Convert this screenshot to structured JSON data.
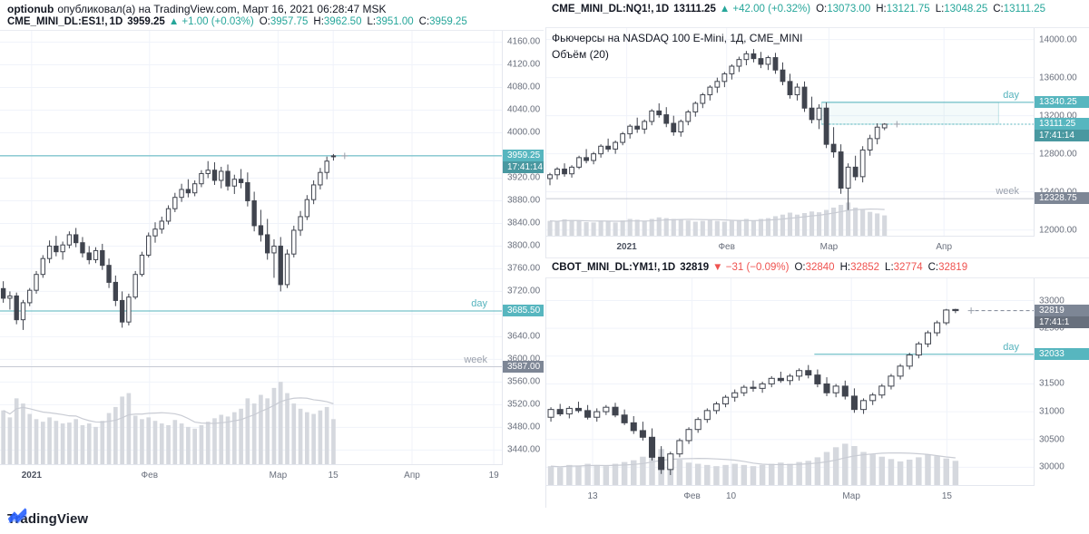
{
  "page": {
    "publisher": "optionub",
    "publish_text": "опубликовал(а) на TradingView.com, Март 16, 2021 06:28:47 MSK",
    "brand": "TradingView"
  },
  "colors": {
    "up": "#26a69a",
    "down": "#ef5350",
    "teal": "#57b6bf",
    "teal_line": "#55b3bd",
    "gray_badge": "#7d8695",
    "gray_line": "#c6cad3",
    "gray_dash": "#7b8392",
    "candle": "#40444e",
    "volume": "#d5d8de",
    "volume_ma": "#c9ccd4",
    "grid": "#f0f3fa",
    "text": "#131722",
    "axis_text": "#696f7c",
    "brand_blue": "#2962ff"
  },
  "headers": {
    "es": {
      "symbol": "CME_MINI_DL:ES1!,",
      "interval": "1D",
      "last": "3959.25",
      "change": "▲ +1.00 (+0.03%)",
      "o_label": "O:",
      "o": "3957.75",
      "h_label": "H:",
      "h": "3962.50",
      "l_label": "L:",
      "l": "3951.00",
      "c_label": "C:",
      "c": "3959.25"
    },
    "nq": {
      "symbol": "CME_MINI_DL:NQ1!,",
      "interval": "1D",
      "last": "13111.25",
      "change": "▲ +42.00 (+0.32%)",
      "o_label": "O:",
      "o": "13073.00",
      "h_label": "H:",
      "h": "13121.75",
      "l_label": "L:",
      "l": "13048.25",
      "c_label": "C:",
      "c": "13111.25"
    },
    "ym": {
      "symbol": "CBOT_MINI_DL:YM1!,",
      "interval": "1D",
      "last": "32819",
      "change": "▼ −31 (−0.09%)",
      "o_label": "O:",
      "o": "32840",
      "h_label": "H:",
      "h": "32852",
      "l_label": "L:",
      "l": "32774",
      "c_label": "C:",
      "c": "32819"
    }
  },
  "legends": {
    "nq": {
      "title": "Фьючерсы на NASDAQ 100 E-Mini, 1Д, CME_MINI",
      "volume": "Объём (20)"
    }
  },
  "chart_data": [
    {
      "id": "es",
      "type": "candlestick",
      "y_min": 3415,
      "y_max": 4180,
      "decimals": 2,
      "slots": 76,
      "vol_frac": 0.19,
      "ticks": [
        4160,
        4120,
        4080,
        4040,
        4000,
        3960,
        3920,
        3880,
        3840,
        3800,
        3760,
        3720,
        3680,
        3640,
        3600,
        3560,
        3520,
        3480,
        3440
      ],
      "x_labels": [
        {
          "f": 0.063,
          "t": "2021",
          "b": true
        },
        {
          "f": 0.298,
          "t": "Фев"
        },
        {
          "f": 0.554,
          "t": "Мар"
        },
        {
          "f": 0.664,
          "t": "15"
        },
        {
          "f": 0.821,
          "t": "Апр"
        },
        {
          "f": 0.984,
          "t": "19"
        }
      ],
      "levels": [
        {
          "value": 3959.25,
          "color": "teal",
          "badge": "3959.25",
          "countdown": "17:41:14"
        },
        {
          "value": 3685.5,
          "color": "teal",
          "label": "day",
          "badge": "3685.50"
        },
        {
          "value": 3587,
          "color": "gray",
          "label": "week",
          "badge": "3587.00"
        }
      ],
      "candles": [
        [
          3725,
          3738,
          3700,
          3708
        ],
        [
          3708,
          3720,
          3688,
          3712
        ],
        [
          3712,
          3718,
          3662,
          3670
        ],
        [
          3670,
          3705,
          3652,
          3700
        ],
        [
          3700,
          3726,
          3694,
          3722
        ],
        [
          3722,
          3756,
          3716,
          3750
        ],
        [
          3750,
          3784,
          3744,
          3778
        ],
        [
          3778,
          3810,
          3770,
          3800
        ],
        [
          3800,
          3818,
          3782,
          3790
        ],
        [
          3790,
          3808,
          3776,
          3802
        ],
        [
          3802,
          3826,
          3796,
          3820
        ],
        [
          3820,
          3832,
          3798,
          3806
        ],
        [
          3806,
          3816,
          3780,
          3788
        ],
        [
          3788,
          3800,
          3768,
          3776
        ],
        [
          3776,
          3798,
          3770,
          3792
        ],
        [
          3792,
          3804,
          3758,
          3766
        ],
        [
          3766,
          3778,
          3726,
          3736
        ],
        [
          3736,
          3748,
          3694,
          3704
        ],
        [
          3704,
          3720,
          3656,
          3666
        ],
        [
          3666,
          3716,
          3660,
          3710
        ],
        [
          3710,
          3756,
          3706,
          3750
        ],
        [
          3750,
          3790,
          3746,
          3784
        ],
        [
          3784,
          3824,
          3780,
          3818
        ],
        [
          3818,
          3842,
          3806,
          3830
        ],
        [
          3830,
          3852,
          3822,
          3844
        ],
        [
          3844,
          3872,
          3838,
          3866
        ],
        [
          3866,
          3894,
          3860,
          3886
        ],
        [
          3886,
          3910,
          3878,
          3900
        ],
        [
          3900,
          3918,
          3886,
          3894
        ],
        [
          3894,
          3916,
          3888,
          3910
        ],
        [
          3910,
          3934,
          3904,
          3928
        ],
        [
          3928,
          3950,
          3920,
          3934
        ],
        [
          3934,
          3948,
          3908,
          3916
        ],
        [
          3916,
          3940,
          3902,
          3932
        ],
        [
          3932,
          3944,
          3898,
          3906
        ],
        [
          3906,
          3926,
          3892,
          3918
        ],
        [
          3918,
          3936,
          3902,
          3912
        ],
        [
          3912,
          3930,
          3870,
          3880
        ],
        [
          3880,
          3896,
          3826,
          3836
        ],
        [
          3836,
          3864,
          3808,
          3820
        ],
        [
          3820,
          3848,
          3776,
          3788
        ],
        [
          3788,
          3812,
          3744,
          3800
        ],
        [
          3800,
          3816,
          3720,
          3732
        ],
        [
          3732,
          3794,
          3726,
          3786
        ],
        [
          3786,
          3836,
          3780,
          3828
        ],
        [
          3828,
          3862,
          3818,
          3852
        ],
        [
          3852,
          3890,
          3846,
          3882
        ],
        [
          3882,
          3916,
          3874,
          3908
        ],
        [
          3908,
          3938,
          3900,
          3930
        ],
        [
          3930,
          3958,
          3918,
          3950
        ],
        [
          3957.75,
          3962.5,
          3951,
          3959.25
        ]
      ],
      "volumes": [
        620,
        540,
        760,
        700,
        580,
        520,
        490,
        540,
        500,
        470,
        480,
        520,
        450,
        470,
        430,
        500,
        590,
        660,
        780,
        820,
        560,
        520,
        540,
        500,
        470,
        450,
        510,
        470,
        430,
        410,
        450,
        490,
        530,
        570,
        550,
        600,
        640,
        760,
        700,
        800,
        760,
        880,
        950,
        820,
        700,
        640,
        600,
        580,
        620,
        660,
        520
      ]
    },
    {
      "id": "nq",
      "type": "candlestick",
      "y_min": 11940,
      "y_max": 14120,
      "decimals": 2,
      "slots": 67,
      "vol_frac": 0.16,
      "ticks": [
        14000,
        13600,
        13200,
        12800,
        12400,
        12000
      ],
      "x_labels": [
        {
          "f": 0.165,
          "t": "2021",
          "b": true
        },
        {
          "f": 0.37,
          "t": "Фев"
        },
        {
          "f": 0.58,
          "t": "Мар"
        },
        {
          "f": 0.816,
          "t": "Апр"
        }
      ],
      "box": {
        "f0": 0.565,
        "f1": 0.928,
        "v1": 13340.25,
        "v2": 13111.25
      },
      "levels": [
        {
          "value": 13340.25,
          "color": "teal",
          "label": "day",
          "badge": "13340.25",
          "f0": 0.565
        },
        {
          "value": 13111.25,
          "color": "teal",
          "badge": "13111.25",
          "countdown": "17:41:14",
          "f0": 0.565,
          "dash": "2,2"
        },
        {
          "value": 12328.75,
          "color": "gray",
          "label": "week",
          "badge": "12328.75"
        }
      ],
      "candles": [
        [
          12540,
          12600,
          12470,
          12580
        ],
        [
          12580,
          12660,
          12530,
          12640
        ],
        [
          12640,
          12700,
          12560,
          12590
        ],
        [
          12590,
          12680,
          12550,
          12660
        ],
        [
          12660,
          12780,
          12640,
          12760
        ],
        [
          12760,
          12850,
          12700,
          12730
        ],
        [
          12730,
          12820,
          12690,
          12800
        ],
        [
          12800,
          12900,
          12760,
          12880
        ],
        [
          12880,
          12960,
          12820,
          12850
        ],
        [
          12850,
          12940,
          12800,
          12920
        ],
        [
          12920,
          13030,
          12890,
          13010
        ],
        [
          13010,
          13110,
          12960,
          13090
        ],
        [
          13090,
          13180,
          13020,
          13060
        ],
        [
          13060,
          13160,
          13010,
          13140
        ],
        [
          13140,
          13270,
          13100,
          13250
        ],
        [
          13250,
          13330,
          13180,
          13210
        ],
        [
          13210,
          13290,
          13080,
          13120
        ],
        [
          13120,
          13200,
          12990,
          13030
        ],
        [
          13030,
          13160,
          12980,
          13140
        ],
        [
          13140,
          13260,
          13100,
          13240
        ],
        [
          13240,
          13350,
          13190,
          13330
        ],
        [
          13330,
          13440,
          13280,
          13420
        ],
        [
          13420,
          13520,
          13360,
          13500
        ],
        [
          13500,
          13600,
          13440,
          13560
        ],
        [
          13560,
          13660,
          13500,
          13640
        ],
        [
          13640,
          13740,
          13580,
          13720
        ],
        [
          13720,
          13820,
          13660,
          13790
        ],
        [
          13790,
          13880,
          13730,
          13850
        ],
        [
          13850,
          13900,
          13760,
          13800
        ],
        [
          13800,
          13870,
          13700,
          13740
        ],
        [
          13740,
          13830,
          13680,
          13810
        ],
        [
          13810,
          13860,
          13640,
          13680
        ],
        [
          13680,
          13760,
          13520,
          13560
        ],
        [
          13560,
          13640,
          13380,
          13420
        ],
        [
          13420,
          13540,
          13360,
          13500
        ],
        [
          13500,
          13560,
          13240,
          13280
        ],
        [
          13280,
          13400,
          13120,
          13160
        ],
        [
          13160,
          13320,
          13060,
          13280
        ],
        [
          13280,
          13340,
          12860,
          12900
        ],
        [
          12900,
          13080,
          12760,
          12820
        ],
        [
          12820,
          12900,
          12380,
          12440
        ],
        [
          12440,
          12700,
          12210,
          12660
        ],
        [
          12660,
          12780,
          12520,
          12560
        ],
        [
          12560,
          12880,
          12500,
          12840
        ],
        [
          12840,
          13000,
          12780,
          12960
        ],
        [
          12960,
          13120,
          12900,
          13080
        ],
        [
          13073,
          13121.75,
          13048.25,
          13111.25
        ]
      ],
      "volumes": [
        380,
        360,
        420,
        400,
        380,
        350,
        340,
        380,
        360,
        340,
        390,
        430,
        410,
        380,
        430,
        470,
        450,
        430,
        410,
        390,
        360,
        380,
        400,
        380,
        360,
        380,
        400,
        430,
        390,
        430,
        450,
        500,
        540,
        590,
        540,
        580,
        620,
        600,
        660,
        720,
        790,
        850,
        720,
        660,
        610,
        570,
        520
      ]
    },
    {
      "id": "ym",
      "type": "candlestick",
      "y_min": 29680,
      "y_max": 33400,
      "decimals": 0,
      "slots": 53,
      "vol_frac": 0.2,
      "ticks": [
        33000,
        32500,
        32000,
        31500,
        31000,
        30500,
        30000
      ],
      "x_labels": [
        {
          "f": 0.095,
          "t": "13"
        },
        {
          "f": 0.299,
          "t": "Фев"
        },
        {
          "f": 0.379,
          "t": "10"
        },
        {
          "f": 0.626,
          "t": "Мар"
        },
        {
          "f": 0.822,
          "t": "15"
        }
      ],
      "levels": [
        {
          "value": 32819,
          "color": "gray",
          "badge": "32819",
          "countdown": "17:41:1",
          "f0": 0.88,
          "dash": "4,3"
        },
        {
          "value": 32033,
          "color": "teal",
          "label": "day",
          "badge": "32033",
          "f0": 0.55
        }
      ],
      "candles": [
        [
          30900,
          31080,
          30820,
          31040
        ],
        [
          31040,
          31140,
          30920,
          30960
        ],
        [
          30960,
          31100,
          30880,
          31060
        ],
        [
          31060,
          31180,
          30980,
          31020
        ],
        [
          31020,
          31120,
          30860,
          30900
        ],
        [
          30900,
          31060,
          30820,
          31000
        ],
        [
          31000,
          31120,
          30940,
          31080
        ],
        [
          31080,
          31160,
          30900,
          30940
        ],
        [
          30940,
          31040,
          30760,
          30800
        ],
        [
          30800,
          30920,
          30600,
          30660
        ],
        [
          30660,
          30820,
          30480,
          30540
        ],
        [
          30540,
          30700,
          30120,
          30180
        ],
        [
          30180,
          30380,
          29880,
          29960
        ],
        [
          29960,
          30280,
          29860,
          30240
        ],
        [
          30240,
          30520,
          30180,
          30480
        ],
        [
          30480,
          30720,
          30420,
          30680
        ],
        [
          30680,
          30900,
          30620,
          30860
        ],
        [
          30860,
          31060,
          30800,
          31020
        ],
        [
          31020,
          31180,
          30960,
          31140
        ],
        [
          31140,
          31300,
          31080,
          31260
        ],
        [
          31260,
          31400,
          31180,
          31340
        ],
        [
          31340,
          31480,
          31280,
          31440
        ],
        [
          31440,
          31560,
          31360,
          31420
        ],
        [
          31420,
          31540,
          31340,
          31500
        ],
        [
          31500,
          31640,
          31440,
          31600
        ],
        [
          31600,
          31720,
          31520,
          31560
        ],
        [
          31560,
          31680,
          31480,
          31640
        ],
        [
          31640,
          31780,
          31560,
          31740
        ],
        [
          31740,
          31840,
          31600,
          31660
        ],
        [
          31660,
          31760,
          31440,
          31500
        ],
        [
          31500,
          31620,
          31280,
          31340
        ],
        [
          31340,
          31500,
          31260,
          31460
        ],
        [
          31460,
          31560,
          31220,
          31280
        ],
        [
          31280,
          31420,
          30980,
          31040
        ],
        [
          31040,
          31240,
          30960,
          31200
        ],
        [
          31200,
          31340,
          31120,
          31300
        ],
        [
          31300,
          31500,
          31240,
          31460
        ],
        [
          31460,
          31680,
          31400,
          31640
        ],
        [
          31640,
          31860,
          31580,
          31820
        ],
        [
          31820,
          32060,
          31760,
          32020
        ],
        [
          32020,
          32260,
          31960,
          32220
        ],
        [
          32220,
          32460,
          32160,
          32420
        ],
        [
          32420,
          32640,
          32360,
          32600
        ],
        [
          32600,
          32850,
          32560,
          32830
        ],
        [
          32840,
          32852,
          32774,
          32819
        ]
      ],
      "volumes": [
        320,
        300,
        340,
        330,
        360,
        340,
        320,
        360,
        390,
        420,
        480,
        560,
        610,
        520,
        430,
        380,
        360,
        340,
        320,
        340,
        360,
        340,
        320,
        340,
        360,
        380,
        360,
        390,
        410,
        470,
        560,
        640,
        700,
        660,
        560,
        520,
        480,
        440,
        400,
        430,
        470,
        520,
        490,
        450,
        410
      ]
    }
  ]
}
